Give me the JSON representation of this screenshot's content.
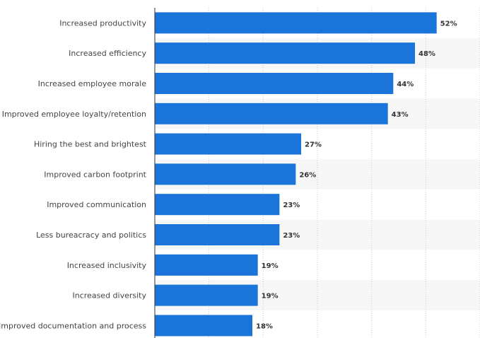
{
  "chart_data": {
    "type": "bar",
    "orientation": "horizontal",
    "categories": [
      "Increased productivity",
      "Increased efficiency",
      "Increased employee morale",
      "Improved employee loyalty/retention",
      "Hiring the best and brightest",
      "Improved carbon footprint",
      "Improved communication",
      "Less bureacracy and politics",
      "Increased inclusivity",
      "Increased diversity",
      "Improved documentation and process"
    ],
    "values": [
      52,
      48,
      44,
      43,
      27,
      26,
      23,
      23,
      19,
      19,
      18
    ],
    "value_labels": [
      "52%",
      "48%",
      "44%",
      "43%",
      "27%",
      "26%",
      "23%",
      "23%",
      "19%",
      "19%",
      "18%"
    ],
    "title": "",
    "xlabel": "",
    "ylabel": "",
    "xlim": [
      0,
      60
    ],
    "grid": true,
    "bar_color": "#1a74da",
    "alt_row_color": "#f7f7f7",
    "grid_color": "#cccccc"
  }
}
